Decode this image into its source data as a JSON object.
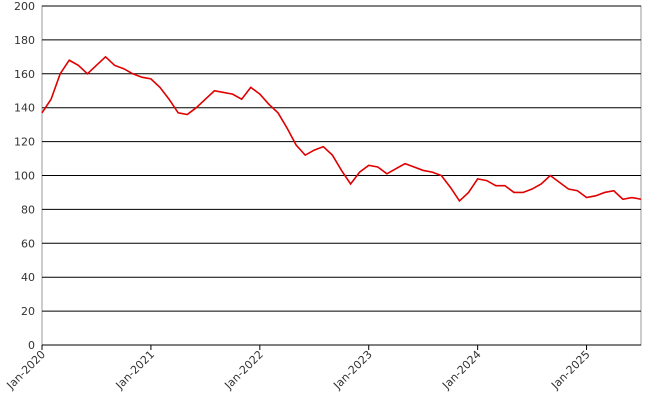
{
  "chart_data": {
    "type": "line",
    "x": [
      "2020-01",
      "2020-02",
      "2020-03",
      "2020-04",
      "2020-05",
      "2020-06",
      "2020-07",
      "2020-08",
      "2020-09",
      "2020-10",
      "2020-11",
      "2020-12",
      "2021-01",
      "2021-02",
      "2021-03",
      "2021-04",
      "2021-05",
      "2021-06",
      "2021-07",
      "2021-08",
      "2021-09",
      "2021-10",
      "2021-11",
      "2021-12",
      "2022-01",
      "2022-02",
      "2022-03",
      "2022-04",
      "2022-05",
      "2022-06",
      "2022-07",
      "2022-08",
      "2022-09",
      "2022-10",
      "2022-11",
      "2022-12",
      "2023-01",
      "2023-02",
      "2023-03",
      "2023-04",
      "2023-05",
      "2023-06",
      "2023-07",
      "2023-08",
      "2023-09",
      "2023-10",
      "2023-11",
      "2023-12",
      "2024-01",
      "2024-02",
      "2024-03",
      "2024-04",
      "2024-05",
      "2024-06",
      "2024-07",
      "2024-08",
      "2024-09",
      "2024-10",
      "2024-11",
      "2024-12",
      "2025-01",
      "2025-02",
      "2025-03",
      "2025-04",
      "2025-05",
      "2025-06",
      "2025-07"
    ],
    "series": [
      {
        "color": "#e00000",
        "values": [
          137,
          145,
          160,
          168,
          165,
          160,
          165,
          170,
          165,
          163,
          160,
          158,
          157,
          152,
          145,
          137,
          136,
          140,
          145,
          150,
          149,
          148,
          145,
          152,
          148,
          142,
          137,
          128,
          118,
          112,
          115,
          117,
          112,
          103,
          95,
          102,
          106,
          105,
          101,
          104,
          107,
          105,
          103,
          102,
          100,
          93,
          85,
          90,
          98,
          97,
          94,
          94,
          90,
          90,
          92,
          95,
          100,
          96,
          92,
          91,
          87,
          88,
          90,
          91,
          86,
          87,
          86
        ]
      }
    ],
    "xlim": [
      "2020-01",
      "2025-07"
    ],
    "xticks": [
      {
        "value": "2020-01",
        "label": "Jan-2020"
      },
      {
        "value": "2021-01",
        "label": "Jan-2021"
      },
      {
        "value": "2022-01",
        "label": "Jan-2022"
      },
      {
        "value": "2023-01",
        "label": "Jan-2023"
      },
      {
        "value": "2024-01",
        "label": "Jan-2024"
      },
      {
        "value": "2025-01",
        "label": "Jan-2025"
      }
    ],
    "ylim": [
      0,
      200
    ],
    "yticks": [
      0,
      20,
      40,
      60,
      80,
      100,
      120,
      140,
      160,
      180,
      200
    ],
    "grid": true
  }
}
